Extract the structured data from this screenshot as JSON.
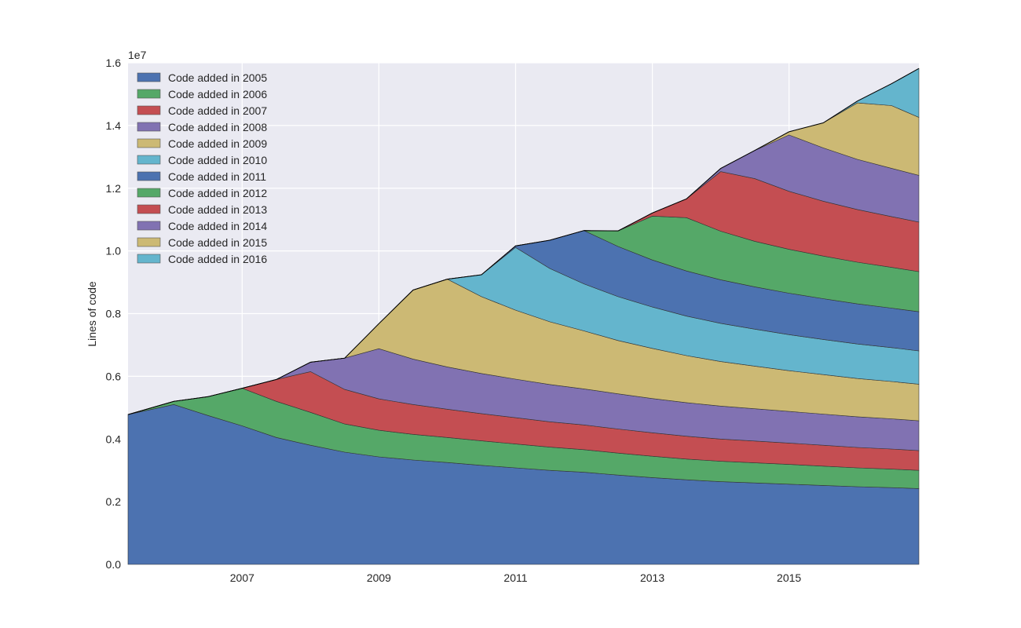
{
  "chart_data": {
    "type": "area",
    "stacked": true,
    "ylabel": "Lines of code",
    "y_multiplier_label": "1e7",
    "y_scale": 10000000,
    "ylim": [
      0,
      16000000
    ],
    "xlim": [
      2005.33,
      2016.9
    ],
    "yticks": [
      0,
      2000000,
      4000000,
      6000000,
      8000000,
      10000000,
      12000000,
      14000000,
      16000000
    ],
    "ytick_labels": [
      "0.0",
      "0.2",
      "0.4",
      "0.6",
      "0.8",
      "1.0",
      "1.2",
      "1.4",
      "1.6"
    ],
    "xticks": [
      2007,
      2009,
      2011,
      2013,
      2015
    ],
    "xtick_labels": [
      "2007",
      "2009",
      "2011",
      "2013",
      "2015"
    ],
    "grid": true,
    "legend_position": "top-left",
    "x": [
      2005.33,
      2006.0,
      2006.5,
      2007.0,
      2007.5,
      2008.0,
      2008.5,
      2009.0,
      2009.5,
      2010.0,
      2010.5,
      2011.0,
      2011.5,
      2012.0,
      2012.5,
      2013.0,
      2013.5,
      2014.0,
      2014.5,
      2015.0,
      2015.5,
      2016.0,
      2016.5,
      2016.9
    ],
    "series": [
      {
        "name": "Code added in 2005",
        "color": "#4c72b0",
        "values": [
          4780000,
          5100000,
          4750000,
          4420000,
          4050000,
          3800000,
          3580000,
          3430000,
          3330000,
          3250000,
          3160000,
          3080000,
          3000000,
          2940000,
          2850000,
          2770000,
          2700000,
          2640000,
          2600000,
          2560000,
          2520000,
          2480000,
          2450000,
          2420000
        ]
      },
      {
        "name": "Code added in 2006",
        "color": "#55a868",
        "values": [
          0,
          100000,
          600000,
          1200000,
          1150000,
          1050000,
          900000,
          850000,
          820000,
          800000,
          780000,
          760000,
          740000,
          720000,
          700000,
          680000,
          660000,
          650000,
          640000,
          630000,
          615000,
          600000,
          590000,
          580000
        ]
      },
      {
        "name": "Code added in 2007",
        "color": "#c44e52",
        "values": [
          0,
          0,
          0,
          0,
          700000,
          1300000,
          1100000,
          1000000,
          950000,
          900000,
          870000,
          840000,
          810000,
          790000,
          770000,
          750000,
          730000,
          710000,
          695000,
          680000,
          665000,
          650000,
          640000,
          630000
        ]
      },
      {
        "name": "Code added in 2008",
        "color": "#8172b2",
        "values": [
          0,
          0,
          0,
          0,
          0,
          300000,
          1000000,
          1600000,
          1450000,
          1350000,
          1280000,
          1230000,
          1190000,
          1150000,
          1120000,
          1090000,
          1070000,
          1050000,
          1030000,
          1010000,
          995000,
          980000,
          965000,
          950000
        ]
      },
      {
        "name": "Code added in 2009",
        "color": "#ccb974",
        "values": [
          0,
          0,
          0,
          0,
          0,
          0,
          0,
          800000,
          2200000,
          2800000,
          2450000,
          2200000,
          2000000,
          1850000,
          1700000,
          1600000,
          1500000,
          1420000,
          1360000,
          1300000,
          1260000,
          1220000,
          1190000,
          1170000
        ]
      },
      {
        "name": "Code added in 2010",
        "color": "#64b5cd",
        "values": [
          0,
          0,
          0,
          0,
          0,
          0,
          0,
          0,
          0,
          0,
          700000,
          2000000,
          1700000,
          1500000,
          1400000,
          1320000,
          1260000,
          1220000,
          1180000,
          1150000,
          1120000,
          1100000,
          1080000,
          1060000
        ]
      },
      {
        "name": "Code added in 2011",
        "color": "#4c72b0",
        "values": [
          0,
          0,
          0,
          0,
          0,
          0,
          0,
          0,
          0,
          0,
          0,
          50000,
          900000,
          1700000,
          1600000,
          1500000,
          1440000,
          1390000,
          1350000,
          1320000,
          1300000,
          1280000,
          1260000,
          1250000
        ]
      },
      {
        "name": "Code added in 2012",
        "color": "#55a868",
        "values": [
          0,
          0,
          0,
          0,
          0,
          0,
          0,
          0,
          0,
          0,
          0,
          0,
          0,
          0,
          500000,
          1400000,
          1700000,
          1550000,
          1450000,
          1400000,
          1360000,
          1330000,
          1300000,
          1280000
        ]
      },
      {
        "name": "Code added in 2013",
        "color": "#c44e52",
        "values": [
          0,
          0,
          0,
          0,
          0,
          0,
          0,
          0,
          0,
          0,
          0,
          0,
          0,
          0,
          0,
          100000,
          600000,
          1900000,
          2000000,
          1850000,
          1750000,
          1680000,
          1620000,
          1580000
        ]
      },
      {
        "name": "Code added in 2014",
        "color": "#8172b2",
        "values": [
          0,
          0,
          0,
          0,
          0,
          0,
          0,
          0,
          0,
          0,
          0,
          0,
          0,
          0,
          0,
          0,
          0,
          100000,
          900000,
          1800000,
          1700000,
          1600000,
          1540000,
          1490000
        ]
      },
      {
        "name": "Code added in 2015",
        "color": "#ccb974",
        "values": [
          0,
          0,
          0,
          0,
          0,
          0,
          0,
          0,
          0,
          0,
          0,
          0,
          0,
          0,
          0,
          0,
          0,
          0,
          0,
          100000,
          800000,
          1800000,
          2000000,
          1850000
        ]
      },
      {
        "name": "Code added in 2016",
        "color": "#64b5cd",
        "values": [
          0,
          0,
          0,
          0,
          0,
          0,
          0,
          0,
          0,
          0,
          0,
          0,
          0,
          0,
          0,
          0,
          0,
          0,
          0,
          0,
          0,
          60000,
          700000,
          1560000
        ]
      }
    ]
  }
}
